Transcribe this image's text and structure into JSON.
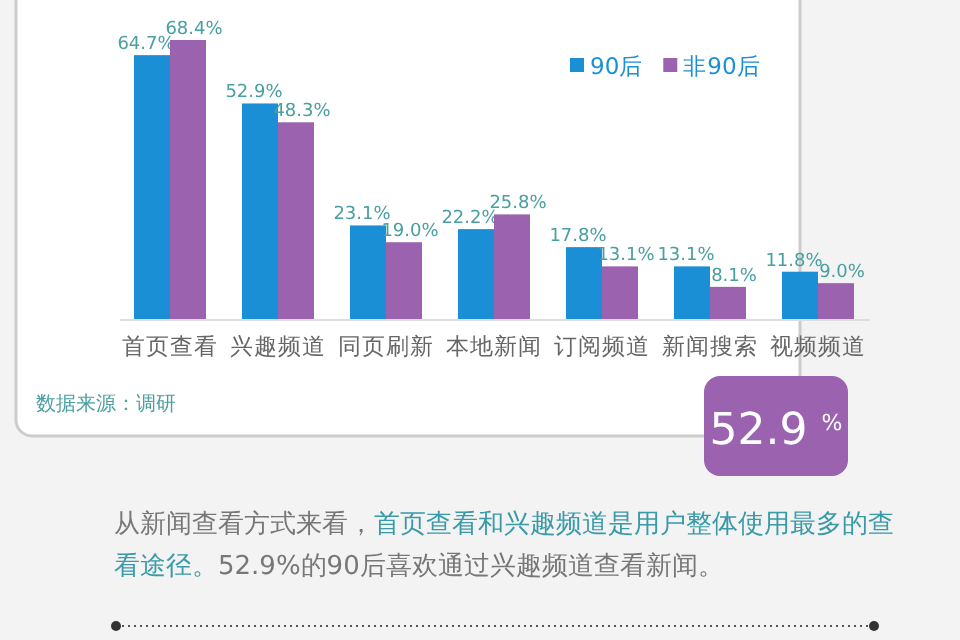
{
  "chart_data": {
    "type": "bar",
    "categories": [
      "首页查看",
      "兴趣频道",
      "同页刷新",
      "本地新闻",
      "订阅频道",
      "新闻搜索",
      "视频频道"
    ],
    "series": [
      {
        "name": "90后",
        "color": "#1a8fd6",
        "values": [
          64.7,
          52.9,
          23.1,
          22.2,
          17.8,
          13.1,
          11.8
        ],
        "value_labels": [
          "64.7%",
          "52.9%",
          "23.1%",
          "22.2%",
          "17.8%",
          "13.1%",
          "11.8%"
        ]
      },
      {
        "name": "非90后",
        "color": "#9b62b0",
        "values": [
          68.4,
          48.3,
          19.0,
          25.8,
          13.1,
          8.1,
          9.0
        ],
        "value_labels": [
          "68.4%",
          "48.3%",
          "19.0%",
          "25.8%",
          "13.1%",
          "8.1%",
          "9.0%"
        ]
      }
    ],
    "legend": "top right",
    "annotations": [
      "数据来源：调研",
      "52.9 $^{%}$",
      "从新闻查看方式来看，",
      "首页查看和兴趣频道是用户整体使用最多的查看途径。",
      "52.9%的90后喜欢通过兴趣频道查看新闻。"
    ]
  }
}
